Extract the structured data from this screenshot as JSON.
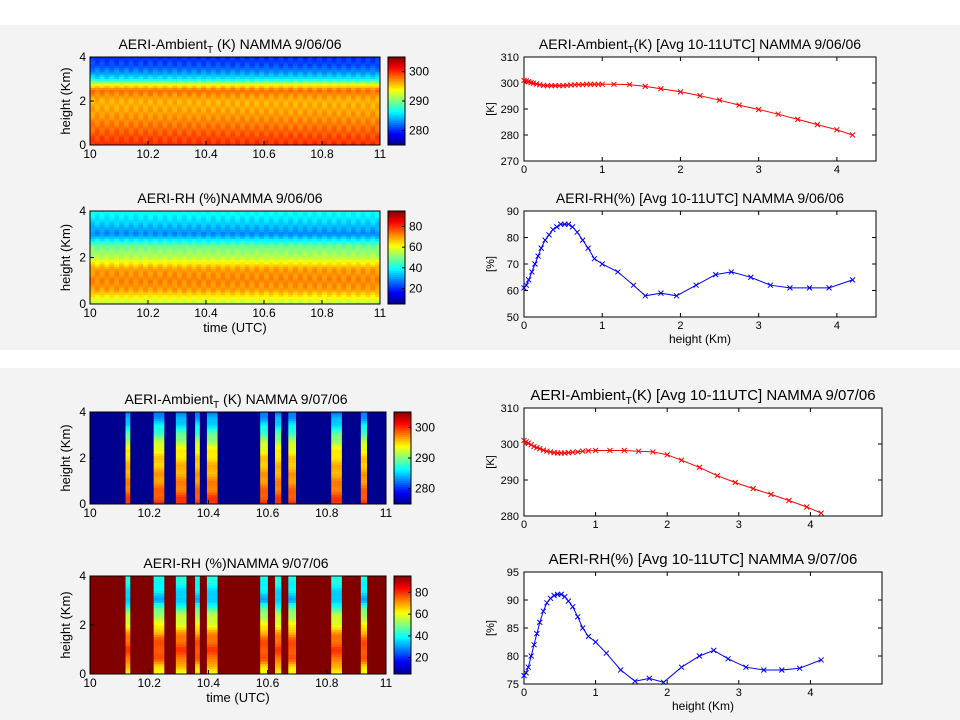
{
  "colormap": {
    "stops": [
      "#00008f",
      "#0000ff",
      "#0080ff",
      "#00ffff",
      "#80ff80",
      "#ffff00",
      "#ff8000",
      "#ff0000",
      "#800000"
    ]
  },
  "chart_data": [
    {
      "id": "hm-t-0906",
      "type": "heatmap",
      "title_parts": [
        "AERI-Ambient",
        "T",
        " (K) NAMMA 9/06/06"
      ],
      "xlabel": "",
      "ylabel": "height (Km)",
      "xlim": [
        10,
        11
      ],
      "ylim": [
        0,
        4
      ],
      "xticks": [
        "10",
        "10.2",
        "10.4",
        "10.6",
        "10.8",
        "11"
      ],
      "yticks": [
        "0",
        "2",
        "4"
      ],
      "clim": [
        275,
        305
      ],
      "colorbar_ticks": [
        "280",
        "290",
        "300"
      ],
      "colorbar_tick_values": [
        280,
        290,
        300
      ],
      "levels": {
        "heights": [
          0,
          0.2,
          0.6,
          1.0,
          1.5,
          2.0,
          2.5,
          2.8,
          3.0,
          3.3,
          3.6,
          4.0
        ],
        "values": [
          300,
          299.5,
          298.5,
          297.5,
          296.5,
          296,
          298,
          292,
          286,
          283,
          281,
          280
        ]
      },
      "columns": null
    },
    {
      "id": "hm-rh-0906",
      "type": "heatmap",
      "title_parts": [
        "AERI-RH (%)NAMMA 9/06/06"
      ],
      "xlabel": "time (UTC)",
      "ylabel": "height (Km)",
      "xlim": [
        10,
        11
      ],
      "ylim": [
        0,
        4
      ],
      "xticks": [
        "10",
        "10.2",
        "10.4",
        "10.6",
        "10.8",
        "11"
      ],
      "yticks": [
        "0",
        "2",
        "4"
      ],
      "clim": [
        5,
        95
      ],
      "colorbar_ticks": [
        "20",
        "40",
        "60",
        "80"
      ],
      "colorbar_tick_values": [
        20,
        40,
        60,
        80
      ],
      "levels": {
        "heights": [
          0,
          0.3,
          0.6,
          1.0,
          1.5,
          2.0,
          2.5,
          3.0,
          3.5,
          4.0
        ],
        "values": [
          55,
          62,
          70,
          72,
          70,
          55,
          48,
          28,
          35,
          40
        ]
      },
      "columns": null
    },
    {
      "id": "hm-t-0907",
      "type": "heatmap",
      "title_parts": [
        "AERI-Ambient",
        "T",
        " (K) NAMMA 9/07/06"
      ],
      "xlabel": "",
      "ylabel": "height (Km)",
      "xlim": [
        10,
        11
      ],
      "ylim": [
        0,
        4
      ],
      "xticks": [
        "10",
        "10.2",
        "10.4",
        "10.6",
        "10.8",
        "11"
      ],
      "yticks": [
        "0",
        "2",
        "4"
      ],
      "clim": [
        275,
        305
      ],
      "colorbar_ticks": [
        "280",
        "290",
        "300"
      ],
      "colorbar_tick_values": [
        280,
        290,
        300
      ],
      "levels": {
        "heights": [
          0,
          0.3,
          0.6,
          1.0,
          1.5,
          2.0,
          2.5,
          3.0,
          3.5,
          4.0
        ],
        "values": [
          300,
          299,
          298,
          297,
          296,
          295,
          293,
          289,
          285,
          282
        ]
      },
      "columns": [
        [
          10.12,
          10.135
        ],
        [
          10.215,
          10.25
        ],
        [
          10.29,
          10.325
        ],
        [
          10.355,
          10.37
        ],
        [
          10.395,
          10.43
        ],
        [
          10.575,
          10.6
        ],
        [
          10.625,
          10.645
        ],
        [
          10.67,
          10.695
        ],
        [
          10.815,
          10.85
        ],
        [
          10.915,
          10.935
        ]
      ],
      "fill_value": "#00008f"
    },
    {
      "id": "hm-rh-0907",
      "type": "heatmap",
      "title_parts": [
        "AERI-RH (%)NAMMA 9/07/06"
      ],
      "xlabel": "time (UTC)",
      "ylabel": "height (Km)",
      "xlim": [
        10,
        11
      ],
      "ylim": [
        0,
        4
      ],
      "xticks": [
        "10",
        "10.2",
        "10.4",
        "10.6",
        "10.8",
        "11"
      ],
      "yticks": [
        "0",
        "2",
        "4"
      ],
      "clim": [
        5,
        95
      ],
      "colorbar_ticks": [
        "20",
        "40",
        "60",
        "80"
      ],
      "colorbar_tick_values": [
        20,
        40,
        60,
        80
      ],
      "levels": {
        "heights": [
          0,
          0.3,
          0.6,
          1.0,
          1.5,
          2.0,
          2.5,
          3.0,
          3.5,
          4.0
        ],
        "values": [
          60,
          66,
          75,
          78,
          74,
          60,
          52,
          32,
          38,
          42
        ]
      },
      "columns": [
        [
          10.12,
          10.135
        ],
        [
          10.215,
          10.25
        ],
        [
          10.29,
          10.325
        ],
        [
          10.355,
          10.37
        ],
        [
          10.395,
          10.43
        ],
        [
          10.575,
          10.6
        ],
        [
          10.625,
          10.645
        ],
        [
          10.67,
          10.695
        ],
        [
          10.815,
          10.85
        ],
        [
          10.915,
          10.935
        ]
      ],
      "fill_value": "#800000"
    },
    {
      "id": "line-t-0906",
      "type": "line",
      "title_parts": [
        "AERI-Ambient",
        "T",
        "(K) [Avg 10-11UTC] NAMMA 9/06/06"
      ],
      "xlabel": "",
      "ylabel": "[K]",
      "xlim": [
        0,
        4.5
      ],
      "ylim": [
        270,
        310
      ],
      "xticks": [
        0,
        1,
        2,
        3,
        4
      ],
      "yticks": [
        270,
        280,
        290,
        300,
        310
      ],
      "color": "#ff0000",
      "x": [
        0.0,
        0.03,
        0.06,
        0.09,
        0.12,
        0.16,
        0.2,
        0.25,
        0.3,
        0.35,
        0.4,
        0.45,
        0.5,
        0.55,
        0.6,
        0.65,
        0.7,
        0.75,
        0.8,
        0.85,
        0.9,
        0.95,
        1.0,
        1.15,
        1.35,
        1.55,
        1.75,
        2.0,
        2.25,
        2.5,
        2.75,
        3.0,
        3.25,
        3.5,
        3.75,
        4.0,
        4.2
      ],
      "y": [
        301.0,
        300.8,
        300.5,
        300.2,
        299.9,
        299.6,
        299.3,
        299.1,
        299.0,
        299.0,
        299.0,
        299.0,
        299.0,
        299.1,
        299.2,
        299.3,
        299.4,
        299.4,
        299.5,
        299.5,
        299.5,
        299.5,
        299.5,
        299.5,
        299.4,
        298.7,
        297.8,
        296.6,
        295.1,
        293.4,
        291.5,
        289.8,
        288.0,
        286.0,
        284.0,
        282.0,
        280.0
      ]
    },
    {
      "id": "line-rh-0906",
      "type": "line",
      "title_parts": [
        "AERI-RH(%) [Avg 10-11UTC] NAMMA 9/06/06"
      ],
      "xlabel": "height (Km)",
      "ylabel": "[%]",
      "xlim": [
        0,
        4.5
      ],
      "ylim": [
        50,
        90
      ],
      "xticks": [
        0,
        1,
        2,
        3,
        4
      ],
      "yticks": [
        50,
        60,
        70,
        80,
        90
      ],
      "color": "#0000ff",
      "x": [
        0.0,
        0.03,
        0.06,
        0.1,
        0.14,
        0.18,
        0.22,
        0.27,
        0.32,
        0.37,
        0.42,
        0.47,
        0.52,
        0.57,
        0.62,
        0.68,
        0.75,
        0.82,
        0.9,
        1.0,
        1.2,
        1.4,
        1.55,
        1.75,
        1.95,
        2.2,
        2.45,
        2.65,
        2.9,
        3.15,
        3.4,
        3.65,
        3.9,
        4.2
      ],
      "y": [
        61,
        62,
        64,
        67,
        70,
        73,
        76,
        79,
        81,
        83,
        84,
        85,
        85,
        85,
        84,
        82,
        79,
        76,
        72,
        70,
        67,
        62,
        58,
        59,
        58,
        62,
        66,
        67,
        65,
        62,
        61,
        61,
        61,
        64
      ]
    },
    {
      "id": "line-t-0907",
      "type": "line",
      "title_parts": [
        "AERI-Ambient",
        "T",
        "(K) [Avg 10-11UTC] NAMMA 9/07/06"
      ],
      "xlabel": "",
      "ylabel": "[K]",
      "xlim": [
        0,
        5
      ],
      "ylim": [
        280,
        310
      ],
      "xticks": [
        0,
        1,
        2,
        3,
        4
      ],
      "yticks": [
        280,
        290,
        300,
        310
      ],
      "color": "#ff0000",
      "x": [
        0.0,
        0.03,
        0.06,
        0.1,
        0.14,
        0.18,
        0.22,
        0.27,
        0.32,
        0.37,
        0.42,
        0.47,
        0.52,
        0.57,
        0.62,
        0.68,
        0.75,
        0.82,
        0.9,
        1.0,
        1.2,
        1.4,
        1.6,
        1.8,
        2.0,
        2.2,
        2.45,
        2.7,
        2.95,
        3.2,
        3.45,
        3.7,
        3.95,
        4.15
      ],
      "y": [
        301.0,
        300.6,
        300.2,
        299.8,
        299.3,
        299.0,
        298.7,
        298.3,
        298.0,
        297.8,
        297.6,
        297.5,
        297.5,
        297.5,
        297.6,
        297.7,
        297.8,
        298.0,
        298.1,
        298.2,
        298.2,
        298.2,
        298.0,
        297.8,
        297.0,
        295.5,
        293.5,
        291.2,
        289.3,
        287.6,
        286.0,
        284.3,
        282.5,
        280.8
      ]
    },
    {
      "id": "line-rh-0907",
      "type": "line",
      "title_parts": [
        "AERI-RH(%) [Avg 10-11UTC] NAMMA 9/07/06"
      ],
      "xlabel": "height (Km)",
      "ylabel": "[%]",
      "xlim": [
        0,
        5
      ],
      "ylim": [
        75,
        95
      ],
      "xticks": [
        0,
        1,
        2,
        3,
        4
      ],
      "yticks": [
        75,
        80,
        85,
        90,
        95
      ],
      "color": "#0000ff",
      "x": [
        0.0,
        0.03,
        0.06,
        0.1,
        0.14,
        0.18,
        0.22,
        0.27,
        0.32,
        0.37,
        0.42,
        0.47,
        0.52,
        0.57,
        0.62,
        0.68,
        0.75,
        0.82,
        0.9,
        1.0,
        1.15,
        1.35,
        1.55,
        1.75,
        1.95,
        2.2,
        2.45,
        2.65,
        2.85,
        3.1,
        3.35,
        3.6,
        3.85,
        4.15
      ],
      "y": [
        76.5,
        77.0,
        78.0,
        80.0,
        82.0,
        84.0,
        86.0,
        88.0,
        89.5,
        90.3,
        90.8,
        91.0,
        91.0,
        90.6,
        89.8,
        88.8,
        87.0,
        85.0,
        83.5,
        82.5,
        80.5,
        77.5,
        75.5,
        76.0,
        75.3,
        78.0,
        80.0,
        81.0,
        79.5,
        78.0,
        77.5,
        77.5,
        77.8,
        79.3
      ]
    }
  ]
}
